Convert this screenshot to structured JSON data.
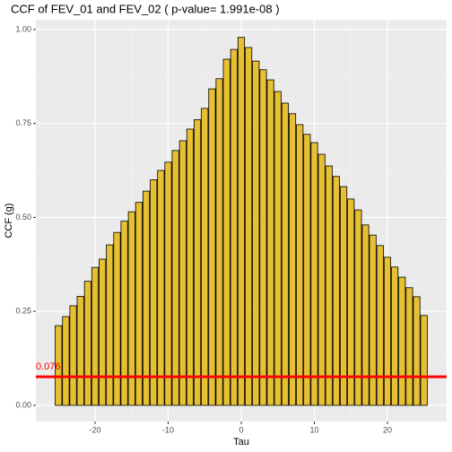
{
  "chart_data": {
    "type": "bar",
    "title": "CCF of FEV_01 and FEV_02 ( p-value= 1.991e-08 )",
    "x_label": "Tau",
    "y_label": "CCF (g)",
    "x": [
      -25,
      -24,
      -23,
      -22,
      -21,
      -20,
      -19,
      -18,
      -17,
      -16,
      -15,
      -14,
      -13,
      -12,
      -11,
      -10,
      -9,
      -8,
      -7,
      -6,
      -5,
      -4,
      -3,
      -2,
      -1,
      0,
      1,
      2,
      3,
      4,
      5,
      6,
      7,
      8,
      9,
      10,
      11,
      12,
      13,
      14,
      15,
      16,
      17,
      18,
      19,
      20,
      21,
      22,
      23,
      24,
      25
    ],
    "values": [
      0.212,
      0.236,
      0.265,
      0.29,
      0.33,
      0.367,
      0.389,
      0.427,
      0.46,
      0.49,
      0.515,
      0.54,
      0.57,
      0.6,
      0.625,
      0.647,
      0.678,
      0.704,
      0.735,
      0.76,
      0.79,
      0.842,
      0.869,
      0.921,
      0.947,
      0.979,
      0.952,
      0.916,
      0.893,
      0.866,
      0.835,
      0.804,
      0.776,
      0.747,
      0.721,
      0.699,
      0.668,
      0.637,
      0.609,
      0.582,
      0.549,
      0.52,
      0.48,
      0.453,
      0.425,
      0.394,
      0.368,
      0.341,
      0.313,
      0.289,
      0.239
    ],
    "color": "#e6bf33",
    "threshold": 0.076,
    "threshold_color": "#ff0000",
    "xlim": [
      -28.1,
      28.1
    ],
    "xticks": [
      -20,
      -10,
      0,
      10,
      20
    ],
    "ylim": [
      -0.043,
      1.026
    ],
    "yticks": [
      {
        "value": 0,
        "label": "0.00"
      },
      {
        "value": 0.25,
        "label": "0.25"
      },
      {
        "value": 0.5,
        "label": "0.50"
      },
      {
        "value": 0.75,
        "label": "0.75"
      },
      {
        "value": 1,
        "label": "1.00"
      }
    ],
    "grid": true
  }
}
